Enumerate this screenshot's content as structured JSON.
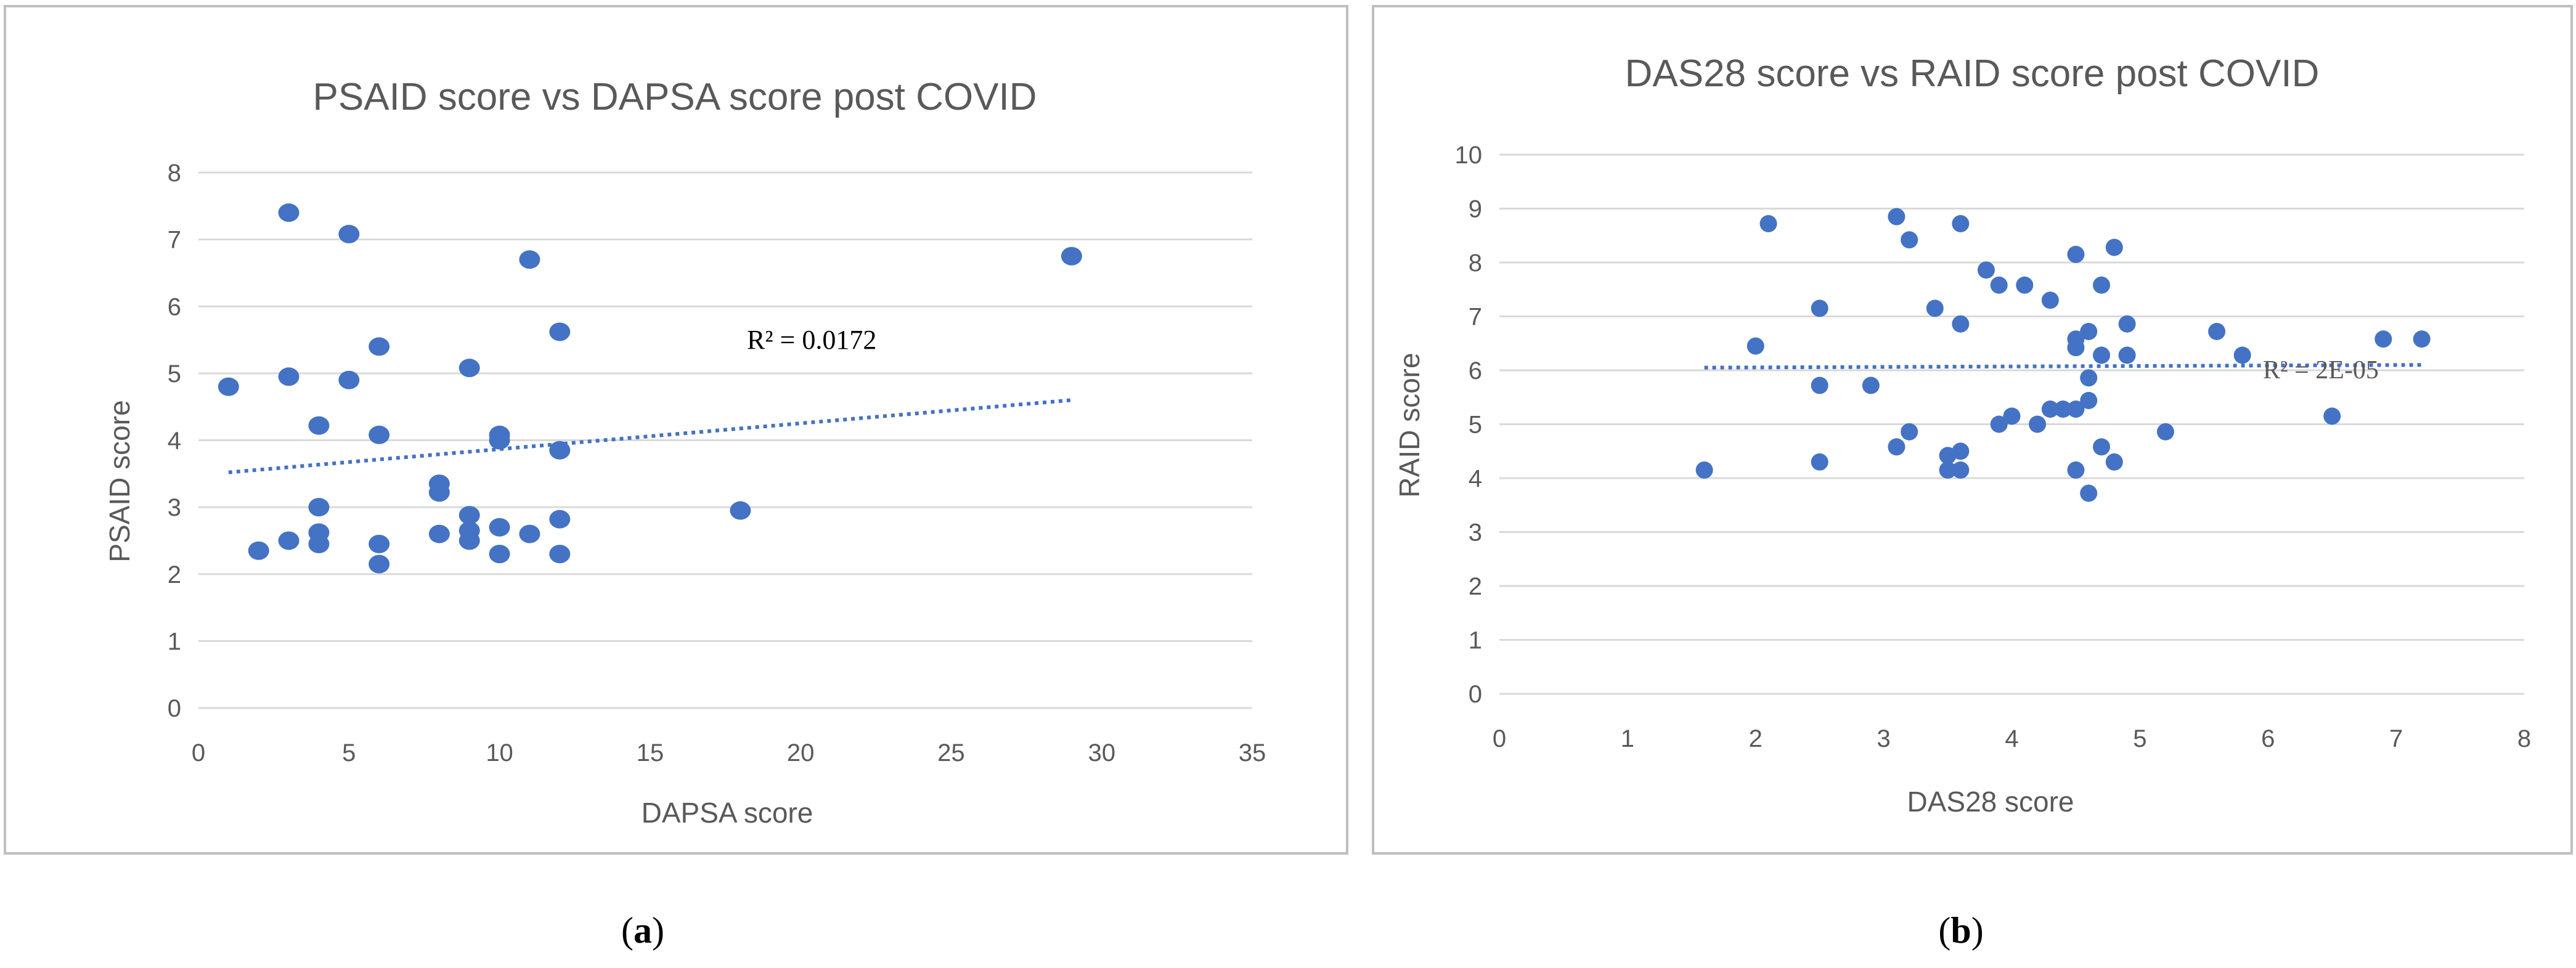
{
  "chart_data": [
    {
      "type": "scatter",
      "title": "PSAID score vs DAPSA score post COVID",
      "xlabel": "DAPSA score",
      "ylabel": "PSAID score",
      "xlim": [
        0,
        35
      ],
      "ylim": [
        0,
        8
      ],
      "xticks": [
        0,
        5,
        10,
        15,
        20,
        25,
        30,
        35
      ],
      "yticks": [
        0,
        1,
        2,
        3,
        4,
        5,
        6,
        7,
        8
      ],
      "grid": "horizontal",
      "series": [
        {
          "name": "PSAID",
          "color": "#4472C4",
          "points": [
            [
              1,
              4.8
            ],
            [
              2,
              2.35
            ],
            [
              3,
              7.4
            ],
            [
              3,
              4.95
            ],
            [
              3,
              2.5
            ],
            [
              4,
              4.22
            ],
            [
              4,
              3.0
            ],
            [
              4,
              2.62
            ],
            [
              4,
              2.45
            ],
            [
              5,
              7.08
            ],
            [
              5,
              4.9
            ],
            [
              6,
              5.4
            ],
            [
              6,
              4.08
            ],
            [
              6,
              2.45
            ],
            [
              6,
              2.15
            ],
            [
              8,
              3.35
            ],
            [
              8,
              3.22
            ],
            [
              8,
              2.6
            ],
            [
              9,
              5.08
            ],
            [
              9,
              2.88
            ],
            [
              9,
              2.65
            ],
            [
              9,
              2.5
            ],
            [
              10,
              4.08
            ],
            [
              10,
              4.0
            ],
            [
              10,
              2.7
            ],
            [
              10,
              2.3
            ],
            [
              11,
              6.7
            ],
            [
              11,
              2.6
            ],
            [
              12,
              5.62
            ],
            [
              12,
              3.85
            ],
            [
              12,
              2.82
            ],
            [
              12,
              2.3
            ],
            [
              18,
              2.95
            ],
            [
              29,
              6.75
            ]
          ]
        }
      ],
      "trendline": {
        "type": "linear",
        "from": [
          1,
          3.52
        ],
        "to": [
          29,
          4.6
        ],
        "label": "R² = 0.0172"
      },
      "caption_label": "a"
    },
    {
      "type": "scatter",
      "title": "DAS28 score vs RAID score post COVID",
      "xlabel": "DAS28 score",
      "ylabel": "RAID score",
      "xlim": [
        0,
        8
      ],
      "ylim": [
        0,
        10
      ],
      "xticks": [
        0,
        1,
        2,
        3,
        4,
        5,
        6,
        7,
        8
      ],
      "yticks": [
        0,
        1,
        2,
        3,
        4,
        5,
        6,
        7,
        8,
        9,
        10
      ],
      "grid": "horizontal",
      "series": [
        {
          "name": "RAID",
          "color": "#4472C4",
          "points": [
            [
              1.6,
              4.15
            ],
            [
              2.0,
              6.45
            ],
            [
              2.1,
              8.72
            ],
            [
              2.5,
              7.15
            ],
            [
              2.5,
              5.72
            ],
            [
              2.5,
              4.3
            ],
            [
              2.9,
              5.72
            ],
            [
              3.1,
              8.85
            ],
            [
              3.1,
              4.58
            ],
            [
              3.2,
              8.42
            ],
            [
              3.2,
              4.86
            ],
            [
              3.4,
              7.15
            ],
            [
              3.5,
              4.42
            ],
            [
              3.5,
              4.15
            ],
            [
              3.6,
              8.72
            ],
            [
              3.6,
              6.86
            ],
            [
              3.6,
              4.5
            ],
            [
              3.6,
              4.15
            ],
            [
              3.8,
              7.86
            ],
            [
              3.9,
              7.58
            ],
            [
              3.9,
              5.0
            ],
            [
              4.0,
              5.15
            ],
            [
              4.1,
              7.58
            ],
            [
              4.2,
              5.0
            ],
            [
              4.3,
              7.3
            ],
            [
              4.3,
              5.28
            ],
            [
              4.4,
              5.28
            ],
            [
              4.5,
              8.15
            ],
            [
              4.5,
              6.58
            ],
            [
              4.5,
              6.42
            ],
            [
              4.5,
              5.28
            ],
            [
              4.5,
              4.15
            ],
            [
              4.6,
              6.72
            ],
            [
              4.6,
              5.86
            ],
            [
              4.6,
              5.44
            ],
            [
              4.6,
              3.72
            ],
            [
              4.7,
              7.58
            ],
            [
              4.7,
              6.28
            ],
            [
              4.7,
              4.58
            ],
            [
              4.8,
              8.28
            ],
            [
              4.8,
              4.3
            ],
            [
              4.9,
              6.86
            ],
            [
              4.9,
              6.28
            ],
            [
              5.2,
              4.86
            ],
            [
              5.6,
              6.72
            ],
            [
              5.8,
              6.28
            ],
            [
              6.5,
              5.15
            ],
            [
              6.9,
              6.58
            ],
            [
              7.2,
              6.58
            ]
          ]
        }
      ],
      "trendline": {
        "type": "linear",
        "from": [
          1.6,
          6.05
        ],
        "to": [
          7.2,
          6.1
        ],
        "label": "R² = 2E-05"
      },
      "caption_label": "b"
    }
  ]
}
